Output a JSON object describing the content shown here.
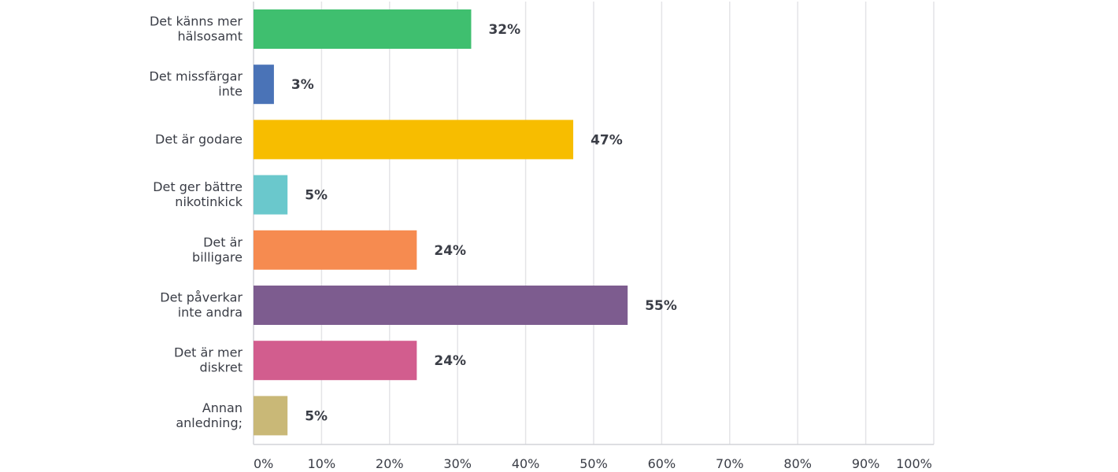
{
  "chart_data": {
    "type": "bar",
    "orientation": "horizontal",
    "categories": [
      [
        "Det känns mer",
        "hälsosamt"
      ],
      [
        "Det missfärgar",
        "inte"
      ],
      [
        "Det är godare"
      ],
      [
        "Det ger bättre",
        "nikotinkick"
      ],
      [
        "Det är",
        "billigare"
      ],
      [
        "Det påverkar",
        "inte andra"
      ],
      [
        "Det är mer",
        "diskret"
      ],
      [
        "Annan",
        "anledning;"
      ]
    ],
    "values": [
      32,
      3,
      47,
      5,
      24,
      55,
      24,
      5
    ],
    "value_labels": [
      "32%",
      "3%",
      "47%",
      "5%",
      "24%",
      "55%",
      "24%",
      "5%"
    ],
    "colors": [
      "#3fbf6f",
      "#4a73b7",
      "#f7bd00",
      "#6ac8cc",
      "#f68b50",
      "#7d5c8f",
      "#d25d8e",
      "#c9b877"
    ],
    "xlim": [
      0,
      100
    ],
    "x_ticks": [
      0,
      10,
      20,
      30,
      40,
      50,
      60,
      70,
      80,
      90,
      100
    ],
    "x_tick_labels": [
      "0%",
      "10%",
      "20%",
      "30%",
      "40%",
      "50%",
      "60%",
      "70%",
      "80%",
      "90%",
      "100%"
    ],
    "grid": true,
    "title": "",
    "xlabel": "",
    "ylabel": ""
  }
}
